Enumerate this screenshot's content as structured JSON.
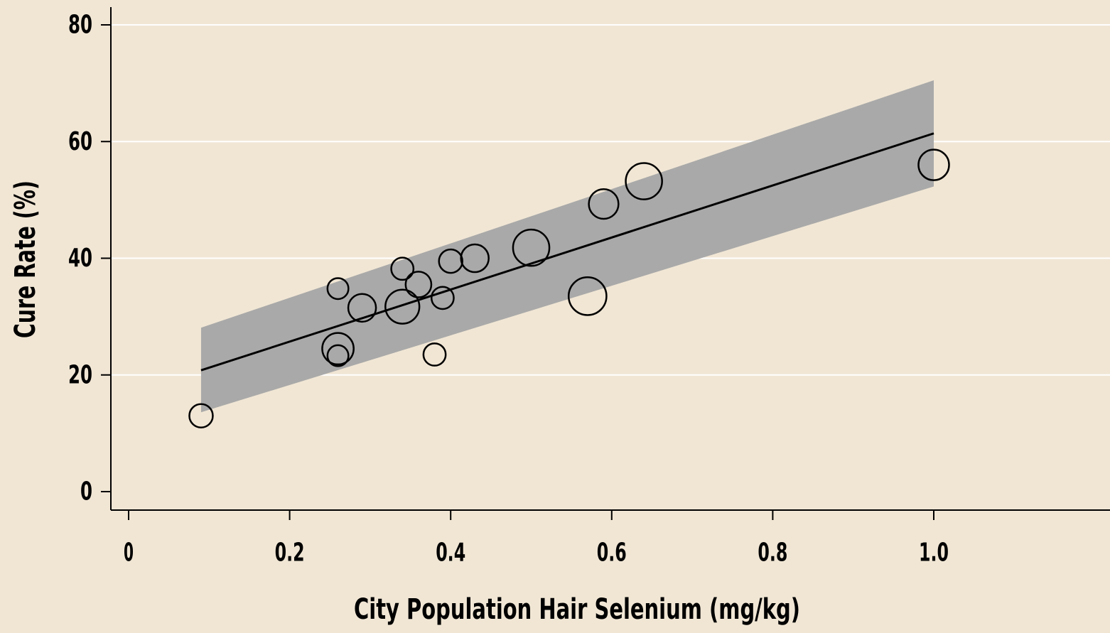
{
  "chart_data": {
    "type": "scatter",
    "title": "",
    "xlabel": "City Population Hair Selenium (mg/kg)",
    "ylabel": "Cure Rate (%)",
    "xlim": [
      -0.02,
      1.21
    ],
    "ylim": [
      -3,
      83
    ],
    "x_ticks": [
      0,
      0.2,
      0.4,
      0.6,
      0.8,
      1.0
    ],
    "x_tick_labels": [
      "0",
      "0.2",
      "0.4",
      "0.6",
      "0.8",
      "1.0"
    ],
    "y_ticks": [
      0,
      20,
      40,
      60,
      80
    ],
    "y_tick_labels": [
      "0",
      "20",
      "40",
      "60",
      "80"
    ],
    "grid": "horizontal",
    "legend": "none",
    "points": [
      {
        "x": 0.09,
        "y": 13.0,
        "size": 1.0
      },
      {
        "x": 0.26,
        "y": 34.8,
        "size": 0.8
      },
      {
        "x": 0.26,
        "y": 24.5,
        "size": 1.8
      },
      {
        "x": 0.26,
        "y": 23.3,
        "size": 0.8
      },
      {
        "x": 0.29,
        "y": 31.5,
        "size": 1.4
      },
      {
        "x": 0.34,
        "y": 38.2,
        "size": 0.9
      },
      {
        "x": 0.34,
        "y": 31.7,
        "size": 2.1
      },
      {
        "x": 0.36,
        "y": 35.5,
        "size": 1.2
      },
      {
        "x": 0.38,
        "y": 23.5,
        "size": 0.9
      },
      {
        "x": 0.39,
        "y": 33.2,
        "size": 0.9
      },
      {
        "x": 0.4,
        "y": 39.5,
        "size": 1.0
      },
      {
        "x": 0.43,
        "y": 40.0,
        "size": 1.4
      },
      {
        "x": 0.5,
        "y": 41.8,
        "size": 2.4
      },
      {
        "x": 0.57,
        "y": 33.5,
        "size": 2.6
      },
      {
        "x": 0.59,
        "y": 49.3,
        "size": 1.6
      },
      {
        "x": 0.64,
        "y": 53.2,
        "size": 2.4
      },
      {
        "x": 1.0,
        "y": 56.0,
        "size": 1.7
      }
    ],
    "fit_line": {
      "x": [
        0.09,
        1.0
      ],
      "y": [
        20.8,
        61.4
      ]
    },
    "confidence_band": {
      "x": [
        0.09,
        1.0
      ],
      "upper": [
        28.1,
        70.5
      ],
      "lower": [
        13.6,
        52.3
      ]
    },
    "colors": {
      "background": "#f1e6d4",
      "grid": "#ffffff",
      "band": "#a9a9a9",
      "line": "#000000",
      "marker": "#000000"
    }
  }
}
